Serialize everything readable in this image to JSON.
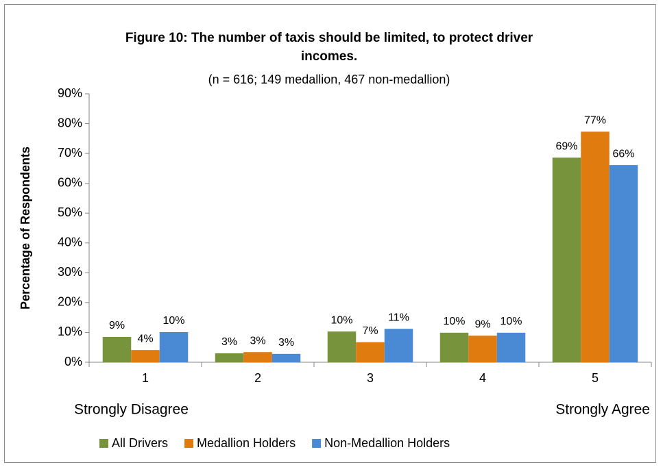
{
  "chart_data": {
    "type": "bar",
    "title": "Figure 10:  The number of taxis should be limited, to protect driver incomes.",
    "subtitle": "(n = 616;  149 medallion,  467 non-medallion)",
    "y_label": "Percentage of Respondents",
    "categories": [
      "1",
      "2",
      "3",
      "4",
      "5"
    ],
    "scale_labels": {
      "low": "Strongly Disagree",
      "high": "Strongly Agree"
    },
    "series": [
      {
        "name": "All Drivers",
        "color": "#77933c",
        "values": [
          8.5,
          3.0,
          10.3,
          9.9,
          68.6
        ],
        "value_labels": [
          "9%",
          "3%",
          "10%",
          "10%",
          "69%"
        ]
      },
      {
        "name": "Medallion Holders",
        "color": "#e07b10",
        "values": [
          4.1,
          3.4,
          6.7,
          8.9,
          77.3
        ],
        "value_labels": [
          "4%",
          "3%",
          "7%",
          "9%",
          "77%"
        ]
      },
      {
        "name": "Non-Medallion Holders",
        "color": "#4a8ad4",
        "values": [
          10.1,
          2.8,
          11.2,
          9.9,
          66.1
        ],
        "value_labels": [
          "10%",
          "3%",
          "11%",
          "10%",
          "66%"
        ]
      }
    ],
    "ylim": [
      0,
      90
    ],
    "yticks": [
      {
        "value": 0,
        "label": "0%"
      },
      {
        "value": 10,
        "label": "10%"
      },
      {
        "value": 20,
        "label": "20%"
      },
      {
        "value": 30,
        "label": "30%"
      },
      {
        "value": 40,
        "label": "40%"
      },
      {
        "value": 50,
        "label": "50%"
      },
      {
        "value": 60,
        "label": "60%"
      },
      {
        "value": 70,
        "label": "70%"
      },
      {
        "value": 80,
        "label": "80%"
      },
      {
        "value": 90,
        "label": "90%"
      }
    ],
    "grid": false,
    "legend": "bottom"
  }
}
